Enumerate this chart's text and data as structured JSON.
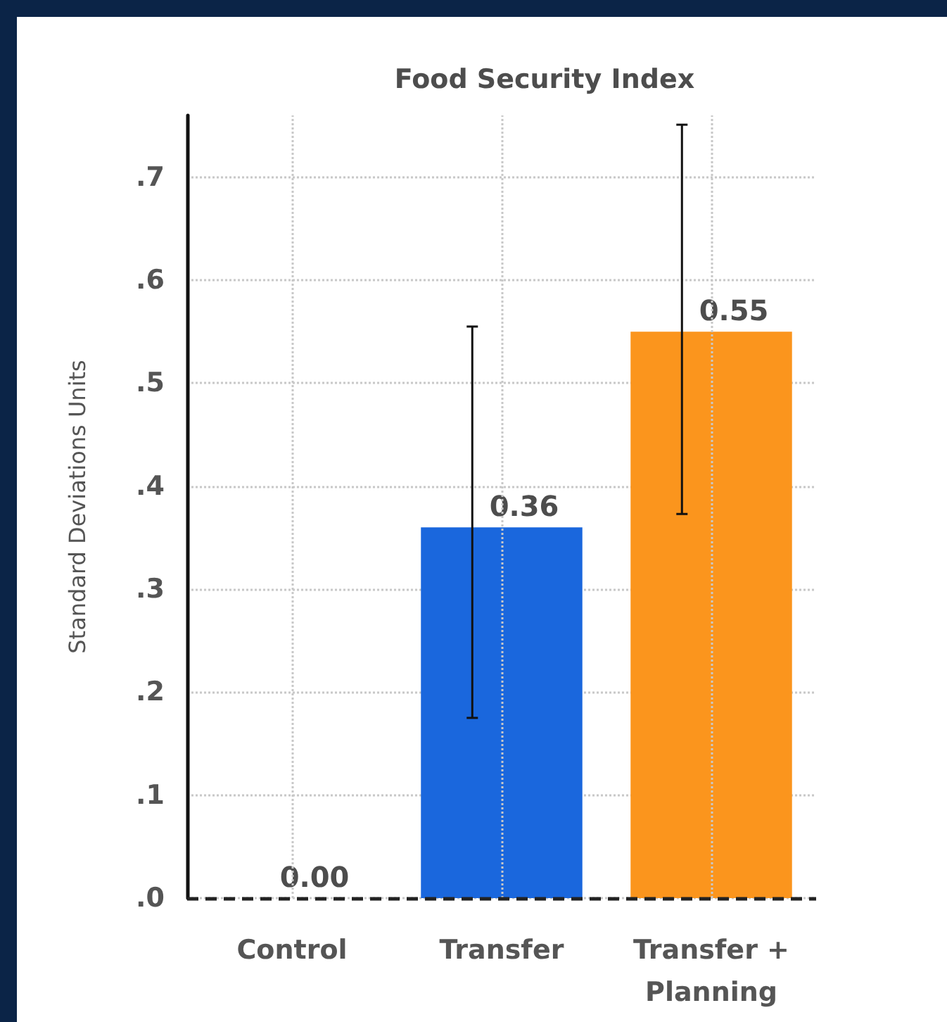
{
  "chart_data": {
    "type": "bar",
    "title": "Food Security Index",
    "ylabel": "Standard Deviations Units",
    "categories": [
      "Control",
      "Transfer",
      "Transfer +\nPlanning"
    ],
    "values": [
      0,
      0.36,
      0.55
    ],
    "colors": [
      "#1a67dd",
      "#1a67dd",
      "#fb951d"
    ],
    "value_labels": [
      "0.00",
      "0.36",
      "0.55"
    ],
    "errors": [
      null,
      [
        0.175,
        0.555
      ],
      [
        0.373,
        0.751
      ]
    ],
    "ylim": [
      0,
      0.76
    ],
    "yticks": [
      {
        "value": 0,
        "label": ".0"
      },
      {
        "value": 0.1,
        "label": ".1"
      },
      {
        "value": 0.2,
        "label": ".2"
      },
      {
        "value": 0.3,
        "label": ".3"
      },
      {
        "value": 0.4,
        "label": ".4"
      },
      {
        "value": 0.5,
        "label": ".5"
      },
      {
        "value": 0.6,
        "label": ".6"
      },
      {
        "value": 0.7,
        "label": ".7"
      }
    ],
    "ref_lines": [
      {
        "axis": "y",
        "value": 0,
        "label": null,
        "color": "#222222",
        "line_style": "dashed"
      }
    ],
    "grid": true
  }
}
